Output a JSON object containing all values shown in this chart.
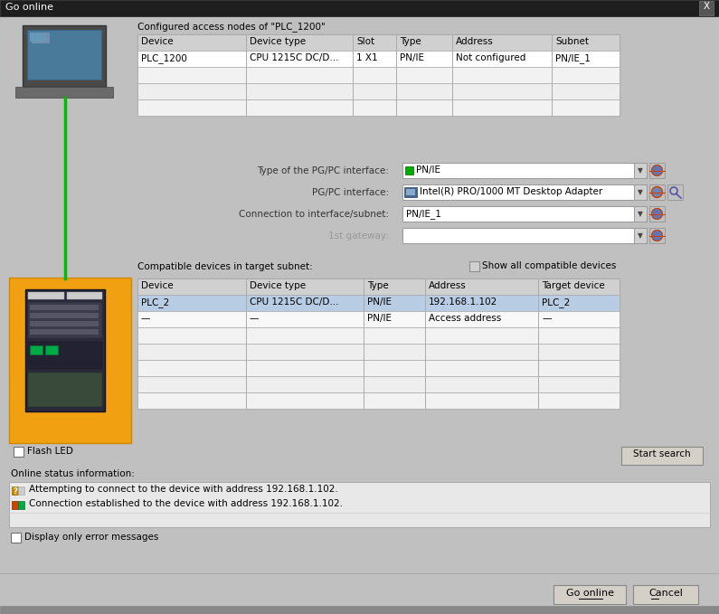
{
  "title": "Go online",
  "bg_color": "#c0c0c0",
  "title_bar_color": "#1e1e1e",
  "title_text_color": "#ffffff",
  "section1_title": "Configured access nodes of \"PLC_1200\"",
  "table1_headers": [
    "Device",
    "Device type",
    "Slot",
    "Type",
    "Address",
    "Subnet"
  ],
  "table1_row1": [
    "PLC_1200",
    "CPU 1215C DC/D...",
    "1 X1",
    "PN/IE",
    "Not configured",
    "PN/IE_1"
  ],
  "table1_empty_rows": 3,
  "interface_labels": [
    "Type of the PG/PC interface:",
    "PG/PC interface:",
    "Connection to interface/subnet:",
    "1st gateway:"
  ],
  "interface_values": [
    "PN/IE",
    "Intel(R) PRO/1000 MT Desktop Adapter",
    "PN/IE_1",
    ""
  ],
  "interface_label_grayed": [
    false,
    false,
    false,
    true
  ],
  "section2_title": "Compatible devices in target subnet:",
  "show_all_label": "Show all compatible devices",
  "table2_headers": [
    "Device",
    "Device type",
    "Type",
    "Address",
    "Target device"
  ],
  "table2_row1": [
    "PLC_2",
    "CPU 1215C DC/D...",
    "PN/IE",
    "192.168.1.102",
    "PLC_2"
  ],
  "table2_row2": [
    "—",
    "—",
    "PN/IE",
    "Access address",
    "—"
  ],
  "table2_empty_rows": 5,
  "table2_row1_highlight": "#b8cce4",
  "start_search_btn": "Start search",
  "status_title": "Online status information:",
  "status_line1": "Attempting to connect to the device with address 192.168.1.102.",
  "status_line2": "Connection established to the device with address 192.168.1.102.",
  "display_error_label": "Display only error messages",
  "go_online_btn": "Go online",
  "cancel_btn": "Cancel",
  "orange_bg": "#f0a010",
  "flash_led_label": "Flash LED",
  "table_header_bg": "#d0d0d0",
  "table_row_bg": "#f0f0f0",
  "table_row_alt_bg": "#e8e8e8",
  "table_line_color": "#aaaaaa",
  "dropdown_bg": "#ffffff",
  "dropdown_border": "#999999",
  "status_bg": "#e8e8e8",
  "btn_bg": "#d4d0c8",
  "btn_border": "#888888"
}
